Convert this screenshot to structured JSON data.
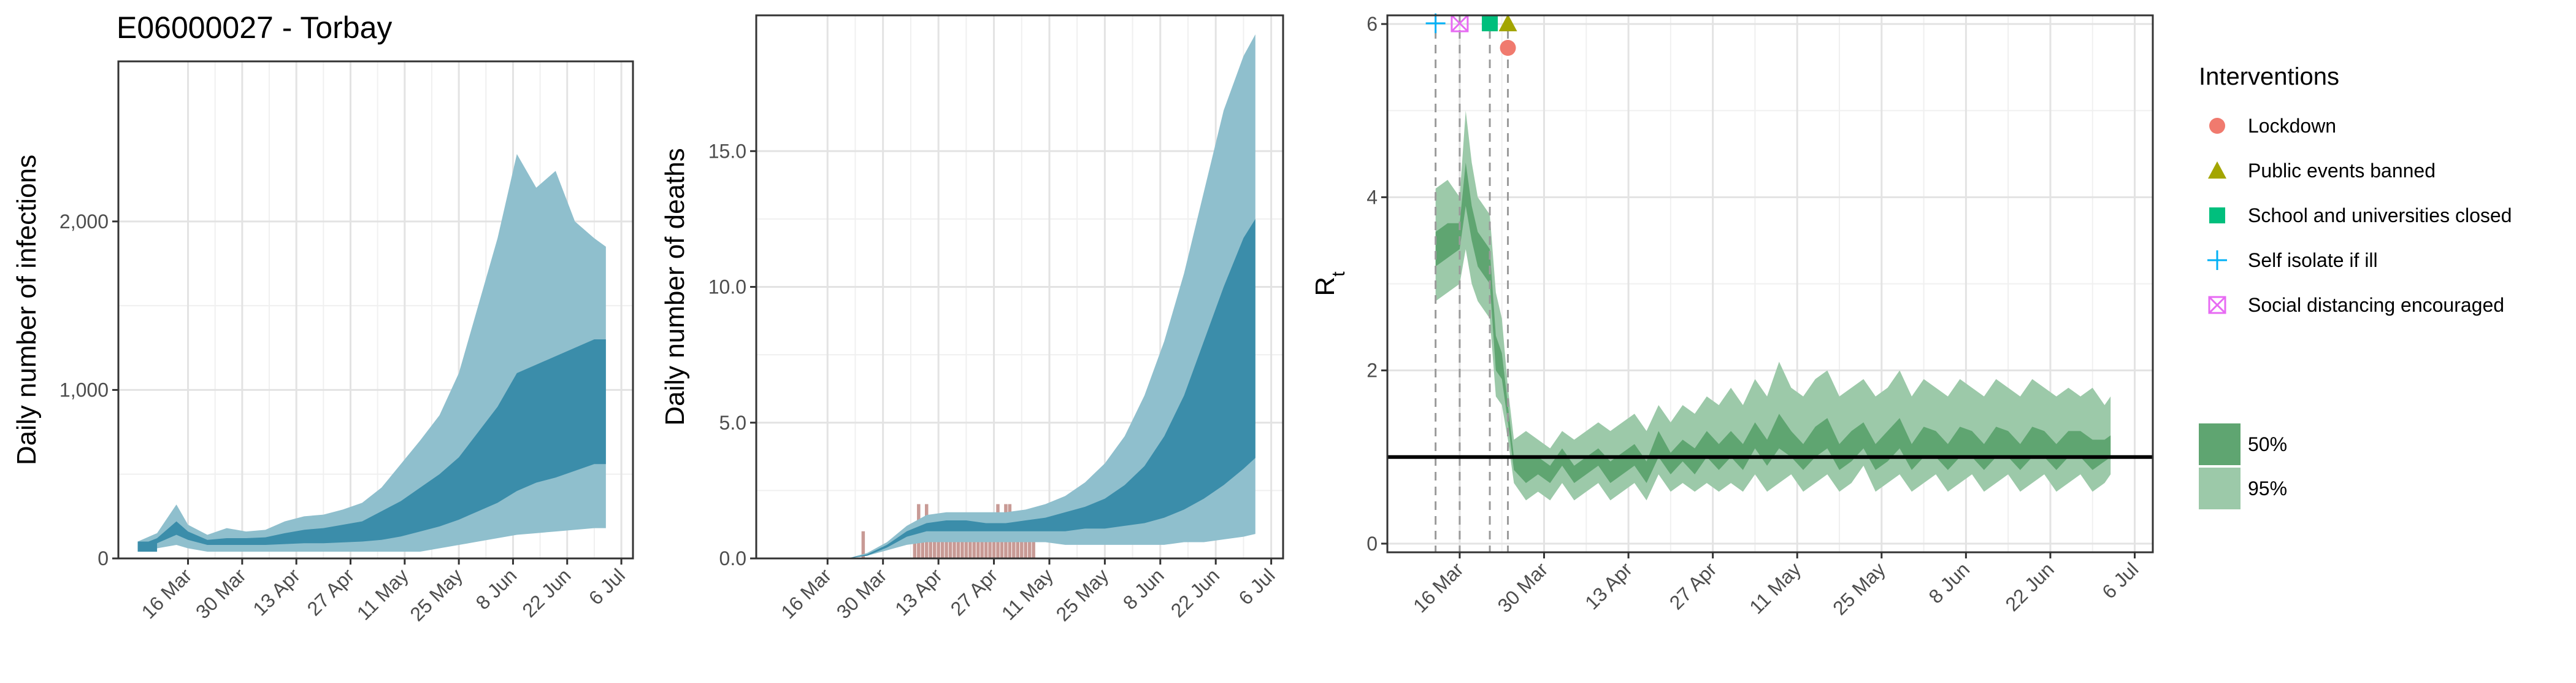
{
  "figure_title": "E06000027 - Torbay",
  "colors": {
    "infections_95": "#8fbfcd",
    "infections_50": "#3b8daa",
    "deaths_observed": "#c89a95",
    "rt_95": "#9cc9a9",
    "rt_50": "#5fa571",
    "rt_line": "#2e8b57",
    "lockdown": "#f07a6e",
    "public_events_banned": "#a3a500",
    "school_closed": "#00bf7d",
    "self_isolate": "#00b0f6",
    "social_distancing": "#e76bf3"
  },
  "chart_data": [
    {
      "id": "infections",
      "type": "area",
      "title": "E06000027 - Torbay",
      "xlabel": "",
      "ylabel": "Daily number of infections",
      "x_ticks": [
        "16 Mar",
        "30 Mar",
        "13 Apr",
        "27 Apr",
        "11 May",
        "25 May",
        "8 Jun",
        "22 Jun",
        "6 Jul"
      ],
      "x_tick_days": [
        75,
        89,
        103,
        117,
        131,
        145,
        159,
        173,
        187
      ],
      "xlim": [
        57,
        190
      ],
      "y_ticks": [
        0,
        1000,
        2000
      ],
      "y_tick_labels": [
        "0",
        "1,000",
        "2,000"
      ],
      "ylim": [
        0,
        2950
      ],
      "x_start_day": 62,
      "series": [
        {
          "name": "95%",
          "x_days": [
            62,
            67,
            72,
            75,
            80,
            85,
            90,
            95,
            100,
            105,
            110,
            115,
            120,
            125,
            130,
            135,
            140,
            145,
            150,
            155,
            160,
            165,
            170,
            175,
            180,
            183
          ],
          "low": [
            40,
            60,
            80,
            60,
            40,
            40,
            40,
            40,
            40,
            40,
            40,
            40,
            40,
            40,
            40,
            40,
            60,
            80,
            100,
            120,
            140,
            150,
            160,
            170,
            180,
            180
          ],
          "high": [
            100,
            150,
            320,
            200,
            140,
            180,
            160,
            170,
            220,
            250,
            260,
            290,
            330,
            420,
            560,
            700,
            850,
            1100,
            1500,
            1900,
            2400,
            2200,
            2300,
            2000,
            1900,
            1850
          ]
        },
        {
          "name": "50%",
          "x_days": [
            62,
            67,
            72,
            75,
            80,
            85,
            90,
            95,
            100,
            105,
            110,
            115,
            120,
            125,
            130,
            135,
            140,
            145,
            150,
            155,
            160,
            165,
            170,
            175,
            180,
            183
          ],
          "low": [
            55,
            90,
            140,
            110,
            80,
            80,
            80,
            80,
            85,
            90,
            90,
            95,
            100,
            110,
            130,
            160,
            190,
            230,
            280,
            330,
            400,
            450,
            480,
            520,
            560,
            560
          ],
          "high": [
            75,
            120,
            220,
            160,
            110,
            120,
            120,
            125,
            150,
            170,
            180,
            200,
            220,
            280,
            340,
            420,
            500,
            600,
            750,
            900,
            1100,
            1150,
            1200,
            1250,
            1300,
            1300
          ]
        }
      ]
    },
    {
      "id": "deaths",
      "type": "area",
      "xlabel": "",
      "ylabel": "Daily number of deaths",
      "x_ticks": [
        "16 Mar",
        "30 Mar",
        "13 Apr",
        "27 Apr",
        "11 May",
        "25 May",
        "8 Jun",
        "22 Jun",
        "6 Jul"
      ],
      "x_tick_days": [
        75,
        89,
        103,
        117,
        131,
        145,
        159,
        173,
        187
      ],
      "xlim": [
        57,
        190
      ],
      "y_ticks": [
        0,
        5,
        10,
        15
      ],
      "y_tick_labels": [
        "0.0",
        "5.0",
        "10.0",
        "15.0"
      ],
      "ylim": [
        0,
        20
      ],
      "observed_bars": {
        "days": [
          84,
          97,
          98,
          99,
          100,
          101,
          102,
          103,
          104,
          105,
          106,
          107,
          108,
          109,
          110,
          111,
          112,
          113,
          114,
          115,
          116,
          117,
          118,
          119,
          120,
          121,
          122,
          123,
          124,
          125,
          126,
          127
        ],
        "deaths": [
          1,
          1,
          2,
          1,
          2,
          1,
          1,
          1,
          1,
          1,
          1,
          1,
          1,
          1,
          1,
          1,
          1,
          1,
          1,
          1,
          1,
          1,
          2,
          1,
          2,
          2,
          1,
          1,
          1,
          1,
          1,
          1
        ]
      },
      "series": [
        {
          "name": "95%",
          "x_days": [
            80,
            85,
            90,
            95,
            100,
            105,
            110,
            115,
            120,
            125,
            130,
            135,
            140,
            145,
            150,
            155,
            160,
            165,
            170,
            175,
            180,
            183
          ],
          "low": [
            0,
            0.1,
            0.3,
            0.5,
            0.6,
            0.6,
            0.6,
            0.6,
            0.6,
            0.6,
            0.6,
            0.5,
            0.5,
            0.5,
            0.5,
            0.5,
            0.5,
            0.6,
            0.6,
            0.7,
            0.8,
            0.9
          ],
          "high": [
            0,
            0.2,
            0.6,
            1.2,
            1.6,
            1.7,
            1.7,
            1.7,
            1.7,
            1.8,
            2.0,
            2.3,
            2.8,
            3.5,
            4.5,
            6.0,
            8.0,
            10.5,
            13.5,
            16.5,
            18.5,
            19.3
          ]
        },
        {
          "name": "50%",
          "x_days": [
            80,
            85,
            90,
            95,
            100,
            105,
            110,
            115,
            120,
            125,
            130,
            135,
            140,
            145,
            150,
            155,
            160,
            165,
            170,
            175,
            180,
            183
          ],
          "low": [
            0,
            0.1,
            0.4,
            0.8,
            1.0,
            1.0,
            1.0,
            1.0,
            1.0,
            1.0,
            1.0,
            1.0,
            1.1,
            1.1,
            1.2,
            1.3,
            1.5,
            1.8,
            2.2,
            2.7,
            3.3,
            3.7
          ],
          "high": [
            0,
            0.15,
            0.5,
            1.0,
            1.3,
            1.4,
            1.4,
            1.3,
            1.3,
            1.4,
            1.5,
            1.7,
            1.9,
            2.2,
            2.7,
            3.4,
            4.5,
            6.0,
            8.0,
            10.0,
            11.8,
            12.5
          ]
        }
      ]
    },
    {
      "id": "rt",
      "type": "area",
      "xlabel": "",
      "ylabel": "R",
      "ylabel_subscript": "t",
      "x_ticks": [
        "16 Mar",
        "30 Mar",
        "13 Apr",
        "27 Apr",
        "11 May",
        "25 May",
        "8 Jun",
        "22 Jun",
        "6 Jul"
      ],
      "x_tick_days": [
        75,
        89,
        103,
        117,
        131,
        145,
        159,
        173,
        187
      ],
      "xlim": [
        63,
        190
      ],
      "y_ticks": [
        0,
        2,
        4,
        6
      ],
      "y_tick_labels": [
        "0",
        "2",
        "4",
        "6"
      ],
      "ylim": [
        -0.1,
        6.1
      ],
      "reference_line": 1,
      "intervention_days": [
        {
          "type": "self_isolate",
          "day": 71
        },
        {
          "type": "social_distancing",
          "day": 75
        },
        {
          "type": "school_closed",
          "day": 80
        },
        {
          "type": "public_events_banned",
          "day": 83
        },
        {
          "type": "lockdown",
          "day": 83
        }
      ],
      "series": [
        {
          "name": "95%",
          "x_days": [
            71,
            73,
            75,
            76,
            77,
            78,
            79,
            80,
            81,
            82,
            83,
            84,
            86,
            88,
            90,
            92,
            94,
            96,
            98,
            100,
            102,
            104,
            106,
            108,
            110,
            112,
            114,
            116,
            118,
            120,
            122,
            124,
            126,
            128,
            130,
            132,
            134,
            136,
            138,
            140,
            142,
            144,
            146,
            148,
            150,
            152,
            154,
            156,
            158,
            160,
            162,
            164,
            166,
            168,
            170,
            172,
            174,
            176,
            178,
            180,
            182,
            183
          ],
          "low": [
            2.8,
            2.9,
            3.0,
            3.4,
            3.0,
            2.8,
            2.7,
            2.6,
            1.7,
            1.6,
            1.2,
            0.7,
            0.5,
            0.6,
            0.5,
            0.7,
            0.5,
            0.6,
            0.7,
            0.5,
            0.6,
            0.7,
            0.5,
            0.8,
            0.6,
            0.7,
            0.6,
            0.7,
            0.6,
            0.7,
            0.6,
            0.8,
            0.6,
            0.7,
            0.8,
            0.6,
            0.7,
            0.8,
            0.6,
            0.7,
            0.9,
            0.6,
            0.7,
            0.8,
            0.6,
            0.7,
            0.8,
            0.6,
            0.7,
            0.8,
            0.6,
            0.7,
            0.8,
            0.6,
            0.7,
            0.8,
            0.6,
            0.7,
            0.8,
            0.6,
            0.7,
            0.8
          ],
          "high": [
            4.1,
            4.2,
            4.0,
            5.0,
            4.4,
            4.0,
            3.9,
            3.8,
            2.9,
            2.6,
            1.8,
            1.2,
            1.3,
            1.2,
            1.1,
            1.3,
            1.2,
            1.3,
            1.4,
            1.3,
            1.4,
            1.5,
            1.3,
            1.6,
            1.4,
            1.6,
            1.5,
            1.7,
            1.6,
            1.8,
            1.6,
            1.9,
            1.7,
            2.1,
            1.8,
            1.7,
            1.9,
            2.0,
            1.7,
            1.8,
            1.9,
            1.7,
            1.8,
            2.0,
            1.7,
            1.9,
            1.8,
            1.7,
            1.9,
            1.8,
            1.7,
            1.9,
            1.8,
            1.7,
            1.9,
            1.8,
            1.7,
            1.8,
            1.7,
            1.8,
            1.6,
            1.7
          ]
        },
        {
          "name": "50%",
          "x_days": [
            71,
            73,
            75,
            76,
            77,
            78,
            79,
            80,
            81,
            82,
            83,
            84,
            86,
            88,
            90,
            92,
            94,
            96,
            98,
            100,
            102,
            104,
            106,
            108,
            110,
            112,
            114,
            116,
            118,
            120,
            122,
            124,
            126,
            128,
            130,
            132,
            134,
            136,
            138,
            140,
            142,
            144,
            146,
            148,
            150,
            152,
            154,
            156,
            158,
            160,
            162,
            164,
            166,
            168,
            170,
            172,
            174,
            176,
            178,
            180,
            182,
            183
          ],
          "low": [
            3.2,
            3.3,
            3.4,
            3.9,
            3.5,
            3.2,
            3.1,
            3.0,
            2.0,
            1.9,
            1.4,
            0.85,
            0.7,
            0.8,
            0.7,
            0.9,
            0.7,
            0.8,
            0.9,
            0.7,
            0.8,
            0.9,
            0.7,
            1.0,
            0.8,
            0.95,
            0.8,
            1.0,
            0.85,
            1.0,
            0.85,
            1.1,
            0.9,
            1.1,
            1.0,
            0.85,
            1.0,
            1.1,
            0.85,
            0.95,
            1.1,
            0.85,
            0.95,
            1.1,
            0.85,
            1.0,
            1.0,
            0.85,
            1.0,
            1.0,
            0.85,
            1.0,
            1.0,
            0.85,
            1.0,
            1.0,
            0.85,
            1.0,
            1.0,
            0.85,
            0.95,
            1.0
          ],
          "high": [
            3.6,
            3.7,
            3.7,
            4.4,
            3.9,
            3.6,
            3.5,
            3.4,
            2.4,
            2.2,
            1.6,
            1.0,
            1.0,
            1.0,
            0.9,
            1.1,
            0.9,
            1.0,
            1.1,
            0.95,
            1.05,
            1.15,
            0.95,
            1.3,
            1.05,
            1.2,
            1.1,
            1.3,
            1.15,
            1.3,
            1.15,
            1.4,
            1.2,
            1.5,
            1.3,
            1.15,
            1.35,
            1.45,
            1.15,
            1.3,
            1.4,
            1.15,
            1.3,
            1.45,
            1.15,
            1.35,
            1.3,
            1.15,
            1.35,
            1.3,
            1.15,
            1.35,
            1.3,
            1.15,
            1.35,
            1.3,
            1.15,
            1.3,
            1.3,
            1.2,
            1.2,
            1.25
          ]
        }
      ]
    }
  ],
  "legend": {
    "interventions_title": "Interventions",
    "items": [
      {
        "label": "Lockdown",
        "shape": "circle",
        "color_key": "lockdown"
      },
      {
        "label": "Public events banned",
        "shape": "triangle",
        "color_key": "public_events_banned"
      },
      {
        "label": "School and universities closed",
        "shape": "square",
        "color_key": "school_closed"
      },
      {
        "label": "Self isolate if ill",
        "shape": "plus",
        "color_key": "self_isolate"
      },
      {
        "label": "Social distancing encouraged",
        "shape": "boxx",
        "color_key": "social_distancing"
      }
    ],
    "bands": [
      {
        "label": "50%",
        "color_key": "rt_50"
      },
      {
        "label": "95%",
        "color_key": "rt_95"
      }
    ]
  }
}
